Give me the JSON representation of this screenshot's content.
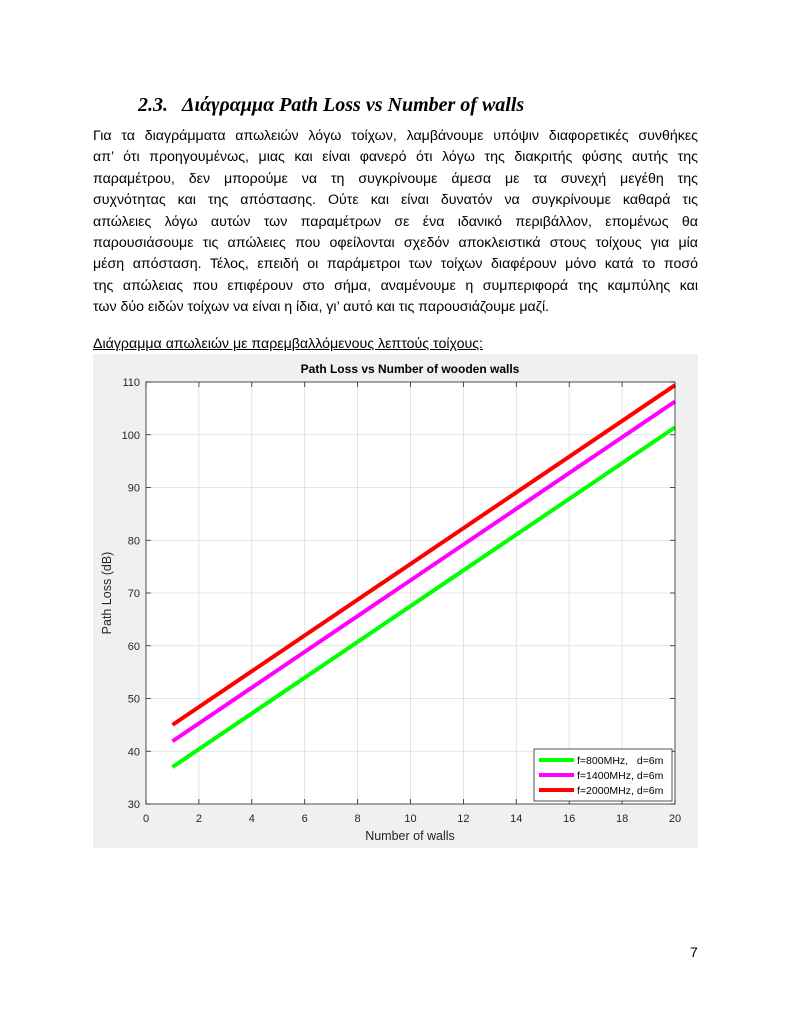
{
  "section": {
    "number": "2.3.",
    "title": "Διάγραμμα Path Loss vs Number of walls"
  },
  "paragraph_lines": [
    "Για τα διαγράμματα απωλειών λόγω τοίχων, λαμβάνουμε υπόψιν διαφορετικές συνθήκες",
    "απ’ ότι προηγουμένως, μιας και είναι φανερό ότι λόγω της διακριτής φύσης αυτής της",
    "παραμέτρου, δεν μπορούμε να τη συγκρίνουμε άμεσα με τα συνεχή μεγέθη της",
    "συχνότητας και της απόστασης. Ούτε και είναι δυνατόν να συγκρίνουμε καθαρά τις",
    "απώλειες λόγω αυτών των παραμέτρων σε ένα ιδανικό περιβάλλον, επομένως θα",
    "παρουσιάσουμε τις απώλειες που οφείλονται σχεδόν αποκλειστικά στους τοίχους για μία",
    "μέση απόσταση. Τέλος, επειδή οι παράμετροι των τοίχων διαφέρουν μόνο κατά το ποσό",
    "της απώλειας που επιφέρουν στο σήμα, αναμένουμε η συμπεριφορά της καμπύλης και",
    "των δύο ειδών τοίχων να είναι η ίδια, γι’ αυτό και τις παρουσιάζουμε μαζί."
  ],
  "figure_caption": "Διάγραμμα απωλειών με παρεμβαλλόμενους λεπτούς τοίχους:",
  "page_number": "7",
  "chart_data": {
    "type": "line",
    "title": "Path Loss vs Number of wooden walls",
    "xlabel": "Number of walls",
    "ylabel": "Path Loss (dB)",
    "xlim": [
      0,
      20
    ],
    "ylim": [
      30,
      110
    ],
    "xticks": [
      0,
      2,
      4,
      6,
      8,
      10,
      12,
      14,
      16,
      18,
      20
    ],
    "yticks": [
      30,
      40,
      50,
      60,
      70,
      80,
      90,
      100,
      110
    ],
    "grid": true,
    "legend_position": "bottom-right",
    "series": [
      {
        "name": "f=800MHz,   d=6m",
        "color": "#00ff00",
        "x": [
          1,
          20
        ],
        "y": [
          37,
          101.4
        ]
      },
      {
        "name": "f=1400MHz, d=6m",
        "color": "#ff00ff",
        "x": [
          1,
          20
        ],
        "y": [
          41.9,
          106.3
        ]
      },
      {
        "name": "f=2000MHz, d=6m",
        "color": "#ff0000",
        "x": [
          1,
          20
        ],
        "y": [
          45,
          109.4
        ]
      }
    ]
  }
}
